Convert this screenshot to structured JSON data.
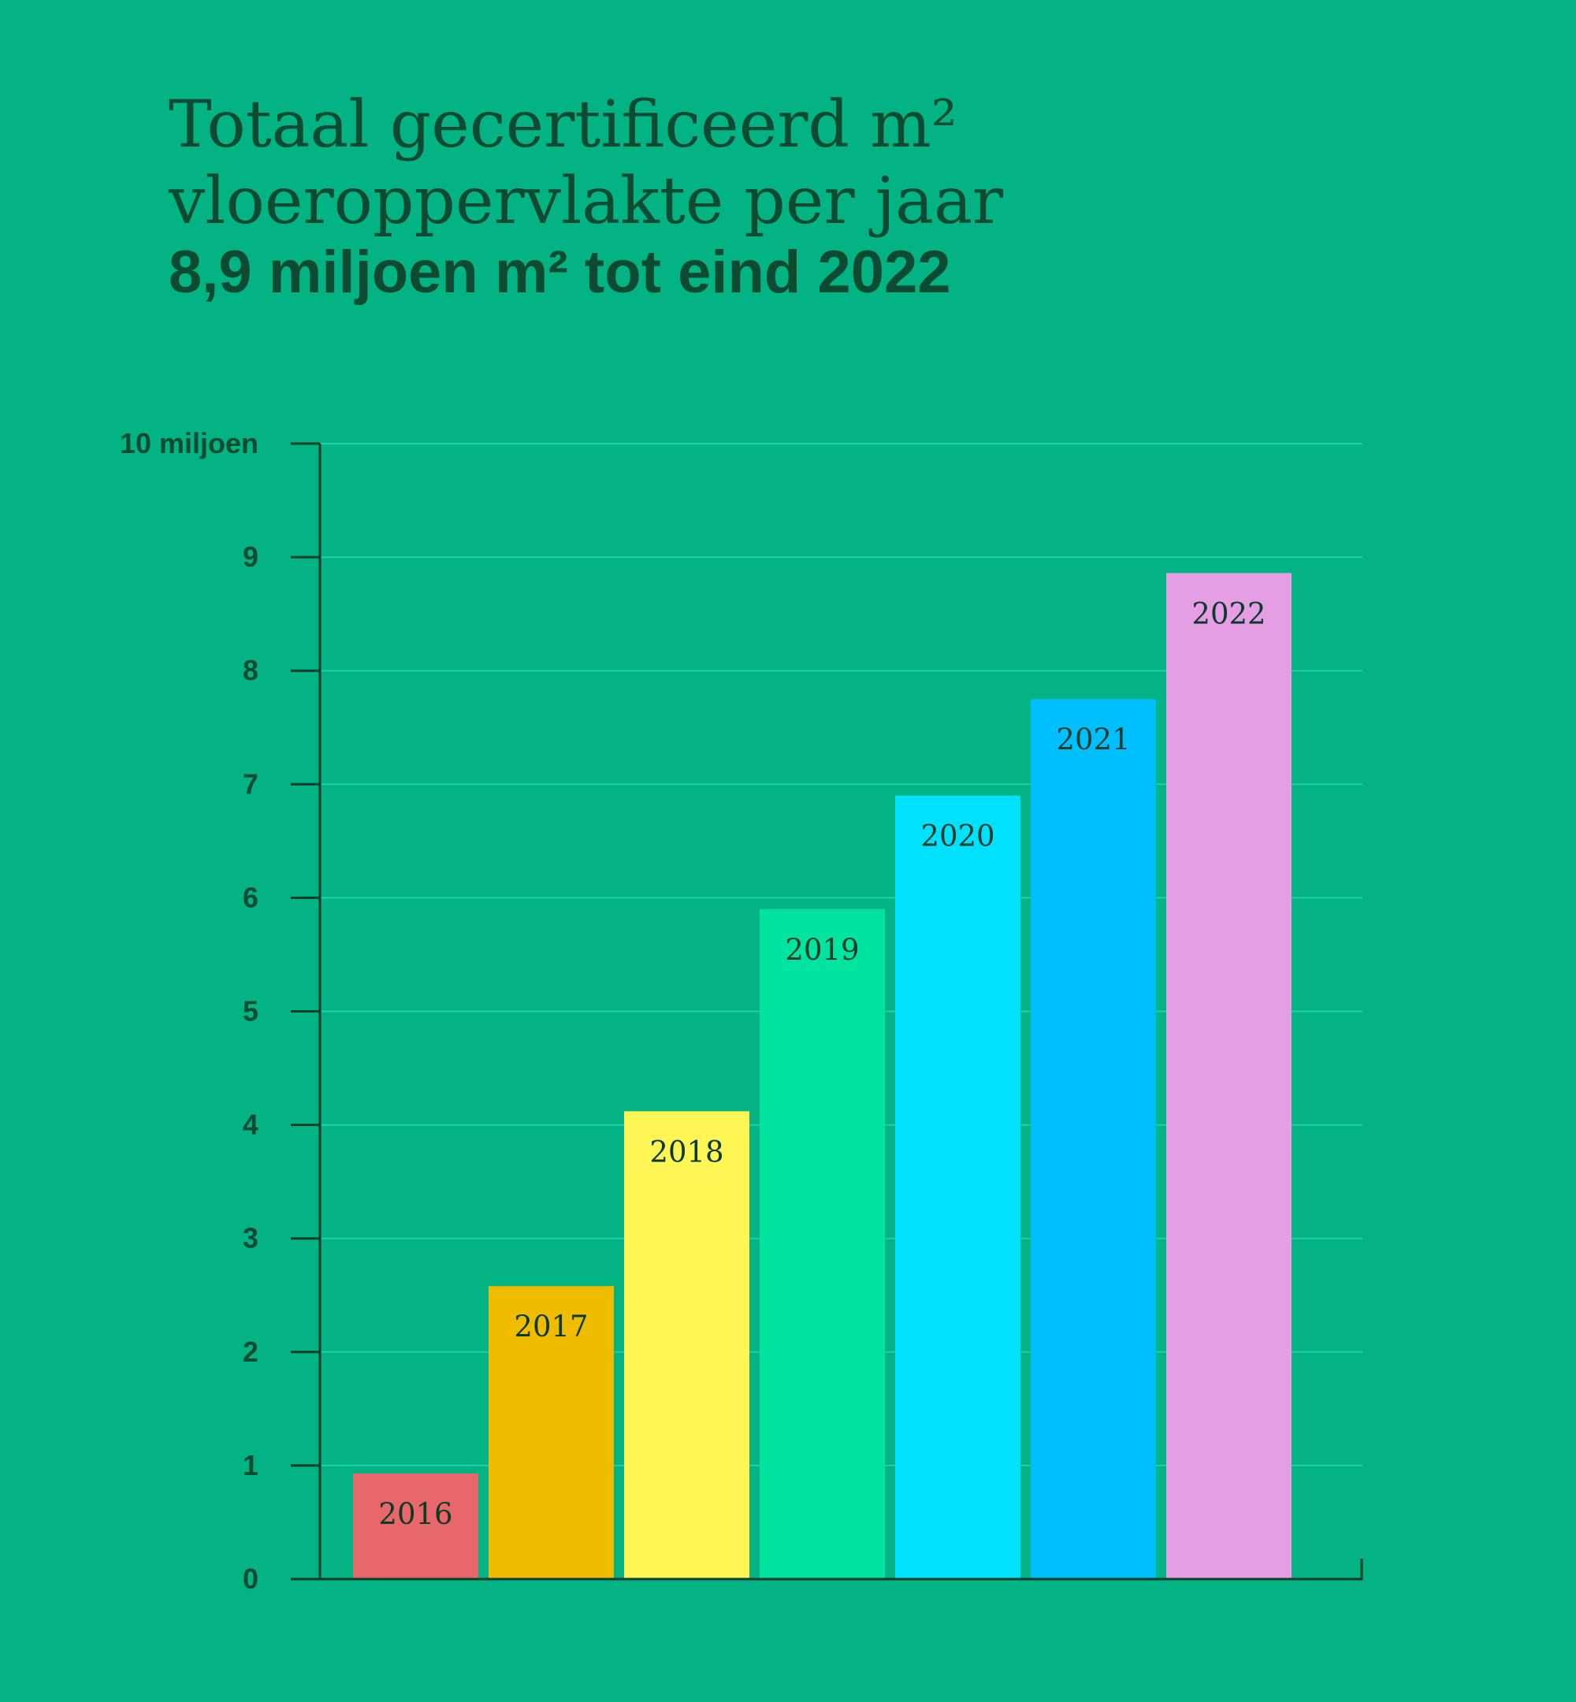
{
  "chart_data": {
    "type": "bar",
    "title_lines": [
      "Totaal gecertificeerd m²",
      "vloeroppervlakte per jaar"
    ],
    "subtitle": "8,9 miljoen m² tot eind 2022",
    "categories": [
      "2016",
      "2017",
      "2018",
      "2019",
      "2020",
      "2021",
      "2022"
    ],
    "values": [
      0.93,
      2.58,
      4.12,
      5.9,
      6.9,
      7.75,
      8.86
    ],
    "bar_colors": [
      "#e8676a",
      "#f0bc00",
      "#fff655",
      "#00e49f",
      "#00e0ff",
      "#00bfff",
      "#e59ee4"
    ],
    "y_ticks": [
      "0",
      "1",
      "2",
      "3",
      "4",
      "5",
      "6",
      "7",
      "8",
      "9",
      "10 miljoen"
    ],
    "ylim": [
      0,
      10
    ],
    "grid": true,
    "bar_labels": "year label inside top of each bar"
  },
  "colors": {
    "background": "#03b383",
    "text": "#0c4a31",
    "axis": "#0f3b2a",
    "grid": "#1ad1b1"
  }
}
